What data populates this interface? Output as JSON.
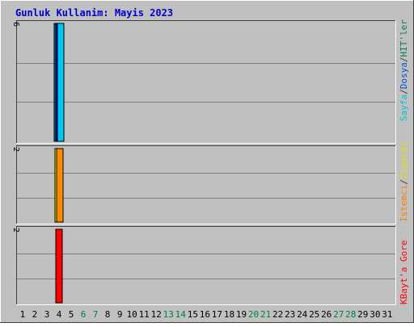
{
  "chart_data": {
    "type": "bar",
    "title": "Gunluk Kullanim: Mayis 2023",
    "title_color": "#0000cc",
    "background_color": "#c0c0c0",
    "categories": [
      "1",
      "2",
      "3",
      "4",
      "5",
      "6",
      "7",
      "8",
      "9",
      "10",
      "11",
      "12",
      "13",
      "14",
      "15",
      "16",
      "17",
      "18",
      "19",
      "20",
      "21",
      "22",
      "23",
      "24",
      "25",
      "26",
      "27",
      "28",
      "29",
      "30",
      "31"
    ],
    "weekend_days": [
      "6",
      "7",
      "13",
      "14",
      "20",
      "21",
      "27",
      "28"
    ],
    "weekend_color": "#008040",
    "weekday_color": "#000000",
    "panels": [
      {
        "ymax": 6,
        "ylim": [
          0,
          6
        ],
        "ymax_label": "6",
        "legend": [
          {
            "text": "Sayfa",
            "color": "#00c0e0"
          },
          {
            "text": "/",
            "color": "#404040"
          },
          {
            "text": "Dosya",
            "color": "#0050d0"
          },
          {
            "text": "/",
            "color": "#404040"
          },
          {
            "text": "HIT'ler",
            "color": "#008060"
          }
        ],
        "series": [
          {
            "name": "HIT'ler",
            "color": "#008080",
            "values": [
              0,
              0,
              0,
              6,
              0,
              0,
              0,
              0,
              0,
              0,
              0,
              0,
              0,
              0,
              0,
              0,
              0,
              0,
              0,
              0,
              0,
              0,
              0,
              0,
              0,
              0,
              0,
              0,
              0,
              0,
              0
            ]
          },
          {
            "name": "Dosya",
            "color": "#0000ff",
            "values": [
              0,
              0,
              0,
              6,
              0,
              0,
              0,
              0,
              0,
              0,
              0,
              0,
              0,
              0,
              0,
              0,
              0,
              0,
              0,
              0,
              0,
              0,
              0,
              0,
              0,
              0,
              0,
              0,
              0,
              0,
              0
            ]
          },
          {
            "name": "Sayfa",
            "color": "#00c8f0",
            "values": [
              0,
              0,
              0,
              6,
              0,
              0,
              0,
              0,
              0,
              0,
              0,
              0,
              0,
              0,
              0,
              0,
              0,
              0,
              0,
              0,
              0,
              0,
              0,
              0,
              0,
              0,
              0,
              0,
              0,
              0,
              0
            ]
          }
        ]
      },
      {
        "ymax": 2,
        "ylim": [
          0,
          2
        ],
        "ymax_label": "2",
        "legend": [
          {
            "text": "Istemci",
            "color": "#ff8000"
          },
          {
            "text": "/",
            "color": "#404040"
          },
          {
            "text": "Ziyaret",
            "color": "#e0e000"
          }
        ],
        "series": [
          {
            "name": "Ziyaret",
            "color": "#ffff00",
            "values": [
              0,
              0,
              0,
              2,
              0,
              0,
              0,
              0,
              0,
              0,
              0,
              0,
              0,
              0,
              0,
              0,
              0,
              0,
              0,
              0,
              0,
              0,
              0,
              0,
              0,
              0,
              0,
              0,
              0,
              0,
              0
            ]
          },
          {
            "name": "Istemci",
            "color": "#ff8c00",
            "values": [
              0,
              0,
              0,
              2,
              0,
              0,
              0,
              0,
              0,
              0,
              0,
              0,
              0,
              0,
              0,
              0,
              0,
              0,
              0,
              0,
              0,
              0,
              0,
              0,
              0,
              0,
              0,
              0,
              0,
              0,
              0
            ]
          }
        ]
      },
      {
        "ymax": 2,
        "ylim": [
          0,
          2
        ],
        "ymax_label": "2",
        "legend": [
          {
            "text": "KBayt'a Gore",
            "color": "#ff0000"
          }
        ],
        "series": [
          {
            "name": "KBayt'a Gore",
            "color": "#ff0000",
            "values": [
              0,
              0,
              0,
              2,
              0,
              0,
              0,
              0,
              0,
              0,
              0,
              0,
              0,
              0,
              0,
              0,
              0,
              0,
              0,
              0,
              0,
              0,
              0,
              0,
              0,
              0,
              0,
              0,
              0,
              0,
              0
            ]
          }
        ]
      }
    ]
  }
}
